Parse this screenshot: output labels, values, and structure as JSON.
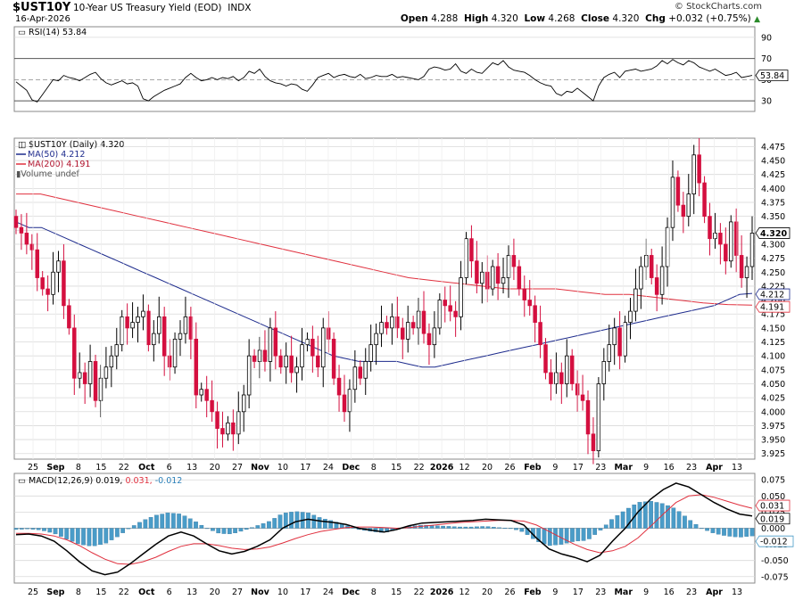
{
  "header": {
    "symbol": "$UST10Y",
    "description": "10-Year US Treasury Yield (EOD)",
    "exchange": "INDX",
    "date": "16-Apr-2026",
    "brand": "© StockCharts.com",
    "open_label": "Open",
    "open": "4.288",
    "high_label": "High",
    "high": "4.320",
    "low_label": "Low",
    "low": "4.268",
    "close_label": "Close",
    "close": "4.320",
    "chg_label": "Chg",
    "chg": "+0.032 (+0.75%)"
  },
  "legends": {
    "rsi": "RSI(14) 53.84",
    "price": "$UST10Y (Daily) 4.320",
    "ma50": "MA(50) 4.212",
    "ma200": "MA(200) 4.191",
    "volume": "Volume undef",
    "macd_prefix": "MACD(12,26,9)",
    "macd_val": "0.019,",
    "signal_val": "0.031,",
    "hist_val": "-0.012"
  },
  "tags": {
    "rsi": "53.84",
    "close": "4.320",
    "ma50": "4.212",
    "ma200": "4.191",
    "macd_signal": "0.031",
    "macd": "0.019",
    "macd_hist": "-0.012"
  },
  "colors": {
    "up": "#000000",
    "down": "#d40f3f",
    "ma50": "#1c2a8c",
    "ma200": "#e0303e",
    "hist": "#4a9cc8",
    "macd": "#000000",
    "signal": "#e0303e",
    "grid": "#d9d9d9"
  },
  "x_axis_labels": [
    "25",
    "Sep",
    "8",
    "15",
    "22",
    "Oct",
    "6",
    "13",
    "20",
    "27",
    "Nov",
    "10",
    "17",
    "24",
    "Dec",
    "8",
    "15",
    "22",
    "2026",
    "12",
    "20",
    "26",
    "Feb",
    "9",
    "17",
    "23",
    "Mar",
    "9",
    "16",
    "23",
    "Apr",
    "13"
  ],
  "chart_data": [
    {
      "type": "line",
      "title": "RSI(14) 53.84",
      "y_ticks": [
        30,
        50,
        70,
        90
      ],
      "ylim": [
        20,
        100
      ],
      "series": [
        {
          "name": "RSI(14)",
          "values": [
            48,
            44,
            40,
            31,
            29,
            36,
            43,
            50,
            49,
            54,
            52,
            51,
            49,
            52,
            55,
            57,
            51,
            47,
            45,
            47,
            49,
            46,
            47,
            44,
            32,
            30,
            34,
            37,
            40,
            42,
            44,
            46,
            52,
            56,
            52,
            49,
            50,
            52,
            50,
            52,
            51,
            53,
            49,
            52,
            58,
            56,
            60,
            53,
            49,
            47,
            46,
            44,
            46,
            45,
            41,
            39,
            45,
            52,
            54,
            56,
            52,
            54,
            55,
            53,
            52,
            55,
            51,
            52,
            54,
            53,
            53,
            55,
            52,
            53,
            52,
            51,
            50,
            53,
            60,
            62,
            61,
            59,
            60,
            65,
            58,
            56,
            60,
            57,
            56,
            61,
            66,
            64,
            68,
            62,
            59,
            58,
            57,
            54,
            50,
            47,
            45,
            44,
            37,
            35,
            39,
            38,
            42,
            38,
            34,
            30,
            44,
            52,
            55,
            57,
            52,
            58,
            59,
            60,
            58,
            59,
            60,
            63,
            68,
            65,
            69,
            66,
            64,
            68,
            66,
            62,
            60,
            58,
            60,
            57,
            54,
            55,
            57,
            52,
            53,
            54
          ]
        }
      ]
    },
    {
      "type": "candlestick",
      "title": "$UST10Y (Daily) 4.320",
      "y_ticks": [
        3.925,
        3.95,
        3.975,
        4.0,
        4.025,
        4.05,
        4.075,
        4.1,
        4.125,
        4.15,
        4.175,
        4.2,
        4.225,
        4.25,
        4.275,
        4.3,
        4.325,
        4.35,
        4.375,
        4.4,
        4.425,
        4.45,
        4.475
      ],
      "ylim": [
        3.915,
        4.49
      ],
      "close": [
        4.33,
        4.32,
        4.3,
        4.29,
        4.24,
        4.22,
        4.21,
        4.25,
        4.27,
        4.19,
        4.15,
        4.06,
        4.07,
        4.05,
        4.09,
        4.02,
        4.06,
        4.08,
        4.1,
        4.12,
        4.17,
        4.15,
        4.16,
        4.17,
        4.18,
        4.12,
        4.14,
        4.17,
        4.1,
        4.08,
        4.13,
        4.14,
        4.17,
        4.13,
        4.03,
        4.04,
        4.02,
        4.0,
        3.97,
        3.96,
        3.98,
        3.96,
        4.0,
        4.03,
        4.1,
        4.09,
        4.11,
        4.09,
        4.15,
        4.1,
        4.08,
        4.1,
        4.07,
        4.08,
        4.12,
        4.13,
        4.1,
        4.08,
        4.15,
        4.13,
        4.06,
        4.03,
        4.0,
        4.04,
        4.08,
        4.06,
        4.09,
        4.12,
        4.14,
        4.16,
        4.15,
        4.17,
        4.15,
        4.13,
        4.16,
        4.15,
        4.18,
        4.14,
        4.12,
        4.15,
        4.2,
        4.19,
        4.18,
        4.17,
        4.24,
        4.31,
        4.27,
        4.23,
        4.25,
        4.22,
        4.26,
        4.23,
        4.24,
        4.28,
        4.26,
        4.22,
        4.2,
        4.19,
        4.16,
        4.12,
        4.07,
        4.05,
        4.07,
        4.05,
        4.1,
        4.05,
        4.03,
        4.02,
        3.96,
        3.93,
        4.05,
        4.09,
        4.12,
        4.15,
        4.1,
        4.16,
        4.18,
        4.22,
        4.26,
        4.28,
        4.24,
        4.21,
        4.26,
        4.33,
        4.42,
        4.37,
        4.35,
        4.39,
        4.46,
        4.41,
        4.35,
        4.31,
        4.32,
        4.3,
        4.27,
        4.34,
        4.28,
        4.24,
        4.26,
        4.32
      ],
      "ma50": [
        4.34,
        4.33,
        4.33,
        4.32,
        4.31,
        4.3,
        4.29,
        4.28,
        4.27,
        4.26,
        4.25,
        4.24,
        4.23,
        4.22,
        4.21,
        4.2,
        4.19,
        4.18,
        4.17,
        4.16,
        4.15,
        4.14,
        4.13,
        4.12,
        4.11,
        4.1,
        4.095,
        4.09,
        4.09,
        4.09,
        4.09,
        4.085,
        4.08,
        4.08,
        4.085,
        4.09,
        4.095,
        4.1,
        4.105,
        4.11,
        4.115,
        4.12,
        4.125,
        4.13,
        4.135,
        4.14,
        4.145,
        4.15,
        4.155,
        4.16,
        4.165,
        4.17,
        4.175,
        4.18,
        4.185,
        4.19,
        4.2,
        4.21,
        4.212
      ],
      "ma200": [
        4.39,
        4.39,
        4.38,
        4.37,
        4.36,
        4.35,
        4.34,
        4.33,
        4.32,
        4.31,
        4.3,
        4.29,
        4.28,
        4.27,
        4.26,
        4.25,
        4.24,
        4.235,
        4.23,
        4.225,
        4.22,
        4.22,
        4.22,
        4.215,
        4.21,
        4.21,
        4.205,
        4.2,
        4.195,
        4.192,
        4.191
      ]
    },
    {
      "type": "line",
      "title": "MACD(12,26,9) 0.019, 0.031, -0.012",
      "y_ticks": [
        -0.075,
        -0.05,
        -0.025,
        0.0,
        0.025,
        0.05,
        0.075
      ],
      "ylim": [
        -0.085,
        0.085
      ],
      "series": [
        {
          "name": "MACD",
          "values": [
            -0.01,
            -0.009,
            -0.012,
            -0.02,
            -0.035,
            -0.052,
            -0.066,
            -0.072,
            -0.068,
            -0.055,
            -0.04,
            -0.025,
            -0.012,
            -0.006,
            -0.012,
            -0.024,
            -0.035,
            -0.04,
            -0.036,
            -0.028,
            -0.018,
            0.0,
            0.01,
            0.014,
            0.011,
            0.009,
            0.006,
            0.0,
            -0.003,
            -0.006,
            -0.002,
            0.004,
            0.008,
            0.009,
            0.01,
            0.011,
            0.012,
            0.014,
            0.013,
            0.012,
            0.005,
            -0.015,
            -0.032,
            -0.04,
            -0.045,
            -0.052,
            -0.042,
            -0.02,
            0.0,
            0.025,
            0.045,
            0.06,
            0.07,
            0.064,
            0.052,
            0.04,
            0.03,
            0.022,
            0.019
          ]
        },
        {
          "name": "Signal",
          "values": [
            -0.008,
            -0.008,
            -0.009,
            -0.012,
            -0.018,
            -0.027,
            -0.038,
            -0.048,
            -0.055,
            -0.056,
            -0.052,
            -0.045,
            -0.036,
            -0.028,
            -0.024,
            -0.024,
            -0.027,
            -0.031,
            -0.033,
            -0.032,
            -0.029,
            -0.023,
            -0.016,
            -0.01,
            -0.005,
            -0.002,
            0.001,
            0.002,
            0.002,
            0.001,
            0.0,
            0.001,
            0.003,
            0.005,
            0.007,
            0.009,
            0.01,
            0.011,
            0.012,
            0.012,
            0.011,
            0.005,
            -0.005,
            -0.015,
            -0.025,
            -0.033,
            -0.038,
            -0.035,
            -0.028,
            -0.015,
            0.003,
            0.022,
            0.04,
            0.05,
            0.052,
            0.048,
            0.042,
            0.036,
            0.031
          ]
        }
      ]
    }
  ]
}
